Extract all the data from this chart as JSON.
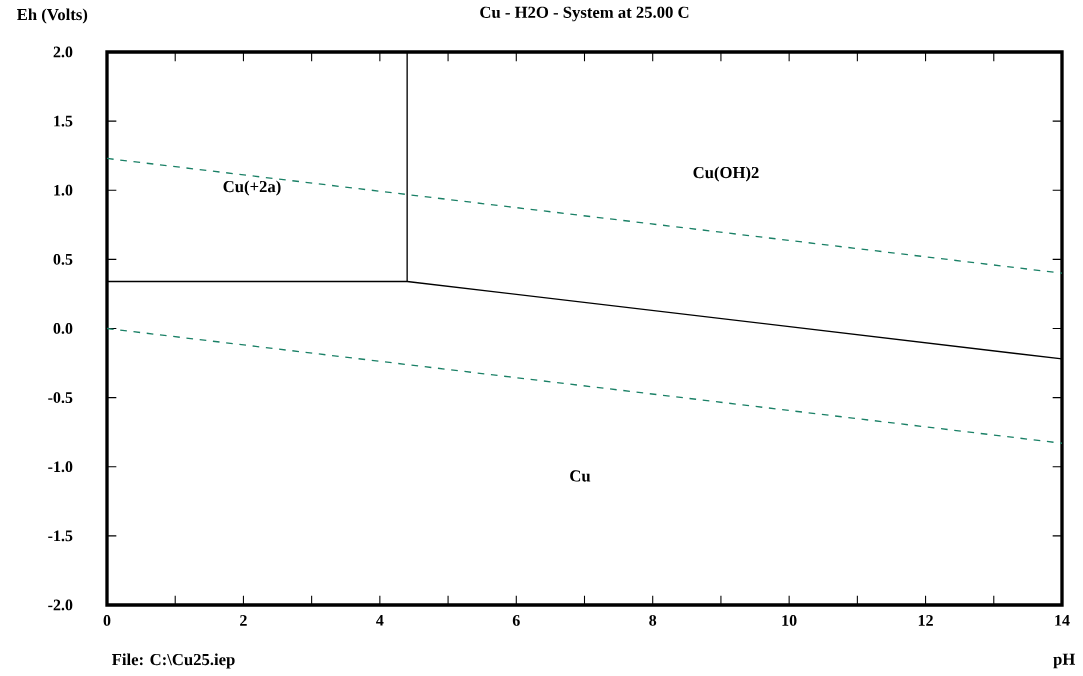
{
  "chart_data": {
    "type": "line",
    "title": "Cu - H2O - System at 25.00 C",
    "xlabel": "pH",
    "ylabel": "Eh (Volts)",
    "xlim": [
      0,
      14
    ],
    "ylim": [
      -2,
      2
    ],
    "xticks": [
      0,
      {
        "value": 1,
        "label": null
      },
      2,
      {
        "value": 3,
        "label": null
      },
      4,
      {
        "value": 5,
        "label": null
      },
      6,
      {
        "value": 7,
        "label": null
      },
      8,
      {
        "value": 9,
        "label": null
      },
      10,
      {
        "value": 11,
        "label": null
      },
      12,
      {
        "value": 13,
        "label": null
      },
      14
    ],
    "yticks": [
      {
        "value": -2,
        "label": "-2.0"
      },
      {
        "value": -1.5,
        "label": "-1.5"
      },
      {
        "value": -1,
        "label": "-1.0"
      },
      {
        "value": -0.5,
        "label": "-0.5"
      },
      {
        "value": 0,
        "label": "0.0"
      },
      {
        "value": 0.5,
        "label": "0.5"
      },
      {
        "value": 1,
        "label": "1.0"
      },
      {
        "value": 1.5,
        "label": "1.5"
      },
      {
        "value": 2,
        "label": "2.0"
      }
    ],
    "marker": "none",
    "series": [
      {
        "color": "#000000",
        "line_style": "solid",
        "x": [
          0,
          4.4,
          14
        ],
        "values": [
          0.34,
          0.34,
          -0.22
        ]
      },
      {
        "color": "#000000",
        "line_style": "solid",
        "x": [
          4.4,
          4.4
        ],
        "values": [
          0.34,
          2.0
        ]
      },
      {
        "color": "#1a8066",
        "line_style": "dashed",
        "x": [
          0,
          14
        ],
        "values": [
          1.23,
          0.4
        ]
      },
      {
        "color": "#1a8066",
        "line_style": "dashed",
        "x": [
          0,
          14
        ],
        "values": [
          0.0,
          -0.83
        ]
      }
    ],
    "annotations": [
      "Cu(+2a)",
      "Cu(OH)2",
      "Cu",
      "File: C:\\Cu25.iep"
    ]
  }
}
